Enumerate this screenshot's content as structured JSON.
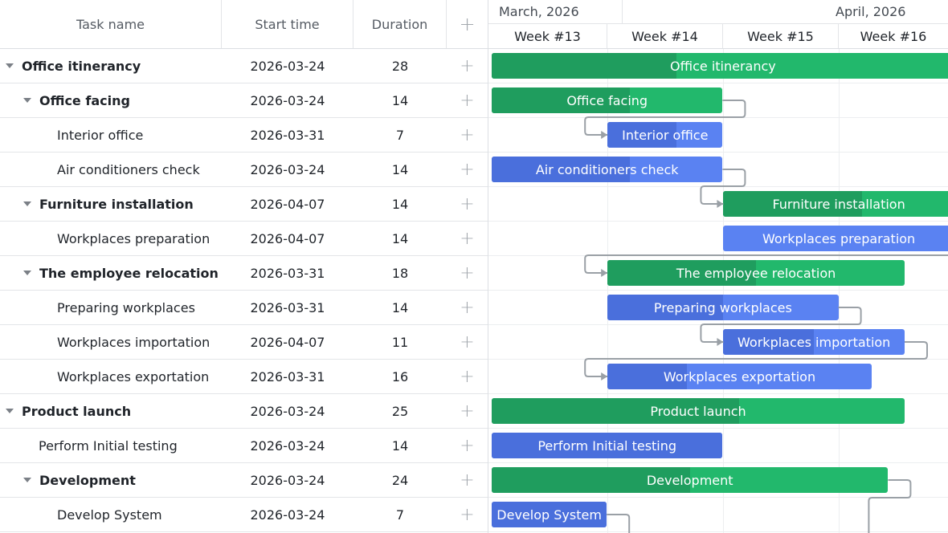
{
  "columns": {
    "name": "Task name",
    "start": "Start time",
    "duration": "Duration",
    "add": "+"
  },
  "timeline": {
    "months": [
      "March, 2026",
      "April, 2026"
    ],
    "weeks": [
      "Week #13",
      "Week #14",
      "Week #15",
      "Week #16"
    ]
  },
  "tasks": [
    {
      "name": "Office itinerancy",
      "start": "2026-03-24",
      "duration": "28",
      "level": 0,
      "parent": true,
      "type": "project",
      "progress": 0.4
    },
    {
      "name": "Office facing",
      "start": "2026-03-24",
      "duration": "14",
      "level": 1,
      "parent": true,
      "type": "project",
      "progress": 0.6
    },
    {
      "name": "Interior office",
      "start": "2026-03-31",
      "duration": "7",
      "level": 2,
      "parent": false,
      "type": "task",
      "progress": 0.6
    },
    {
      "name": "Air conditioners check",
      "start": "2026-03-24",
      "duration": "14",
      "level": 2,
      "parent": false,
      "type": "task",
      "progress": 0.6
    },
    {
      "name": "Furniture installation",
      "start": "2026-04-07",
      "duration": "14",
      "level": 1,
      "parent": true,
      "type": "project",
      "progress": 0.6
    },
    {
      "name": "Workplaces preparation",
      "start": "2026-04-07",
      "duration": "14",
      "level": 2,
      "parent": false,
      "type": "task",
      "progress": 0.0
    },
    {
      "name": "The employee relocation",
      "start": "2026-03-31",
      "duration": "18",
      "level": 1,
      "parent": true,
      "type": "project",
      "progress": 0.5
    },
    {
      "name": "Preparing workplaces",
      "start": "2026-03-31",
      "duration": "14",
      "level": 2,
      "parent": false,
      "type": "task",
      "progress": 0.5
    },
    {
      "name": "Workplaces importation",
      "start": "2026-04-07",
      "duration": "11",
      "level": 2,
      "parent": false,
      "type": "task",
      "progress": 0.5
    },
    {
      "name": "Workplaces exportation",
      "start": "2026-03-31",
      "duration": "16",
      "level": 2,
      "parent": false,
      "type": "task",
      "progress": 0.3
    },
    {
      "name": "Product launch",
      "start": "2026-03-24",
      "duration": "25",
      "level": 0,
      "parent": true,
      "type": "project",
      "progress": 0.6
    },
    {
      "name": "Perform Initial testing",
      "start": "2026-03-24",
      "duration": "14",
      "level": 1,
      "parent": false,
      "type": "task",
      "progress": 1.0
    },
    {
      "name": "Development",
      "start": "2026-03-24",
      "duration": "24",
      "level": 1,
      "parent": true,
      "type": "project",
      "progress": 0.5
    },
    {
      "name": "Develop System",
      "start": "2026-03-24",
      "duration": "7",
      "level": 2,
      "parent": false,
      "type": "task",
      "progress": 1.0
    }
  ],
  "colors": {
    "project": "#22b86c",
    "project_progress": "#1f9d5e",
    "task": "#5a82f2",
    "task_progress": "#4a6fdc",
    "link": "#9aa0a6"
  }
}
